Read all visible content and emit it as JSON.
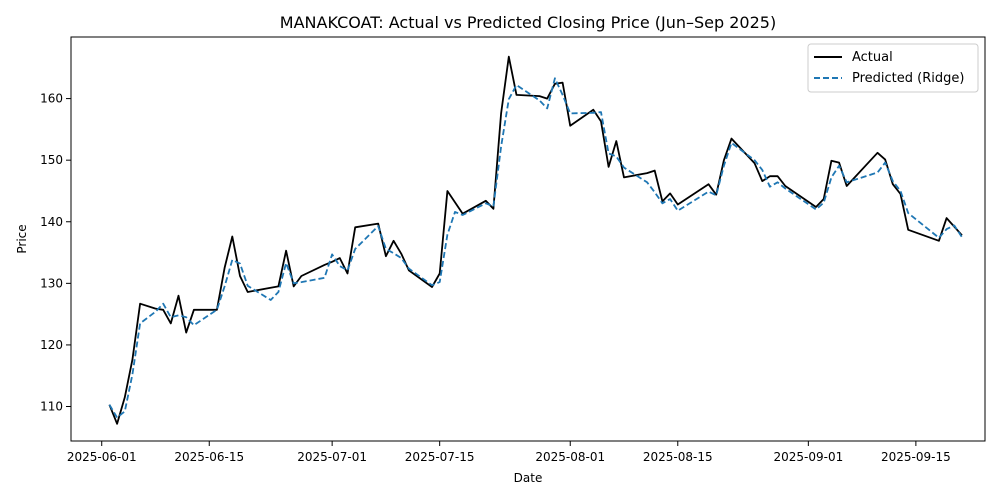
{
  "chart_data": {
    "type": "line",
    "title": "MANAKCOAT: Actual vs Predicted Closing Price (Jun–Sep 2025)",
    "xlabel": "Date",
    "ylabel": "Price",
    "xlim": [
      "2025-05-28",
      "2025-09-24"
    ],
    "ylim": [
      104.4,
      170.0
    ],
    "x_ticks": [
      "2025-06-01",
      "2025-06-15",
      "2025-07-01",
      "2025-07-15",
      "2025-08-01",
      "2025-08-15",
      "2025-09-01",
      "2025-09-15"
    ],
    "y_ticks": [
      110,
      120,
      130,
      140,
      150,
      160
    ],
    "grid": false,
    "legend_position": "top-right",
    "colors": {
      "actual": "#000000",
      "predicted": "#1f77b4"
    },
    "series": [
      {
        "name": "Actual",
        "style": "solid",
        "points": [
          [
            "2025-06-02",
            110.3
          ],
          [
            "2025-06-03",
            107.2
          ],
          [
            "2025-06-04",
            111.5
          ],
          [
            "2025-06-05",
            117.6
          ],
          [
            "2025-06-06",
            126.7
          ],
          [
            "2025-06-08",
            125.9
          ],
          [
            "2025-06-09",
            125.7
          ],
          [
            "2025-06-10",
            123.5
          ],
          [
            "2025-06-11",
            128.0
          ],
          [
            "2025-06-12",
            122.0
          ],
          [
            "2025-06-13",
            125.7
          ],
          [
            "2025-06-16",
            125.7
          ],
          [
            "2025-06-17",
            132.5
          ],
          [
            "2025-06-18",
            137.6
          ],
          [
            "2025-06-19",
            131.2
          ],
          [
            "2025-06-20",
            128.6
          ],
          [
            "2025-06-23",
            129.3
          ],
          [
            "2025-06-24",
            129.5
          ],
          [
            "2025-06-25",
            135.3
          ],
          [
            "2025-06-26",
            129.5
          ],
          [
            "2025-06-27",
            131.2
          ],
          [
            "2025-06-30",
            133.0
          ],
          [
            "2025-07-01",
            133.5
          ],
          [
            "2025-07-02",
            134.1
          ],
          [
            "2025-07-03",
            131.6
          ],
          [
            "2025-07-04",
            139.1
          ],
          [
            "2025-07-07",
            139.7
          ],
          [
            "2025-07-08",
            134.4
          ],
          [
            "2025-07-09",
            136.9
          ],
          [
            "2025-07-10",
            134.8
          ],
          [
            "2025-07-11",
            132.1
          ],
          [
            "2025-07-14",
            129.4
          ],
          [
            "2025-07-15",
            131.6
          ],
          [
            "2025-07-16",
            145.0
          ],
          [
            "2025-07-18",
            141.3
          ],
          [
            "2025-07-21",
            143.4
          ],
          [
            "2025-07-22",
            142.1
          ],
          [
            "2025-07-23",
            157.6
          ],
          [
            "2025-07-24",
            166.8
          ],
          [
            "2025-07-25",
            160.6
          ],
          [
            "2025-07-28",
            160.4
          ],
          [
            "2025-07-29",
            160.0
          ],
          [
            "2025-07-30",
            162.4
          ],
          [
            "2025-07-31",
            162.6
          ],
          [
            "2025-08-01",
            155.6
          ],
          [
            "2025-08-04",
            158.2
          ],
          [
            "2025-08-05",
            156.3
          ],
          [
            "2025-08-06",
            148.9
          ],
          [
            "2025-08-07",
            153.1
          ],
          [
            "2025-08-08",
            147.2
          ],
          [
            "2025-08-11",
            147.9
          ],
          [
            "2025-08-12",
            148.3
          ],
          [
            "2025-08-13",
            143.3
          ],
          [
            "2025-08-14",
            144.6
          ],
          [
            "2025-08-15",
            142.8
          ],
          [
            "2025-08-19",
            146.1
          ],
          [
            "2025-08-20",
            144.4
          ],
          [
            "2025-08-21",
            150.0
          ],
          [
            "2025-08-22",
            153.5
          ],
          [
            "2025-08-25",
            149.5
          ],
          [
            "2025-08-26",
            146.6
          ],
          [
            "2025-08-27",
            147.4
          ],
          [
            "2025-08-28",
            147.4
          ],
          [
            "2025-08-29",
            145.8
          ],
          [
            "2025-09-02",
            142.4
          ],
          [
            "2025-09-03",
            143.7
          ],
          [
            "2025-09-04",
            149.9
          ],
          [
            "2025-09-05",
            149.6
          ],
          [
            "2025-09-06",
            145.8
          ],
          [
            "2025-09-10",
            151.2
          ],
          [
            "2025-09-11",
            150.1
          ],
          [
            "2025-09-12",
            146.1
          ],
          [
            "2025-09-13",
            144.5
          ],
          [
            "2025-09-14",
            138.7
          ],
          [
            "2025-09-18",
            136.9
          ],
          [
            "2025-09-19",
            140.6
          ],
          [
            "2025-09-21",
            137.8
          ]
        ]
      },
      {
        "name": "Predicted (Ridge)",
        "style": "dashed",
        "points": [
          [
            "2025-06-02",
            110.3
          ],
          [
            "2025-06-03",
            108.2
          ],
          [
            "2025-06-04",
            109.2
          ],
          [
            "2025-06-05",
            115.2
          ],
          [
            "2025-06-06",
            123.5
          ],
          [
            "2025-06-08",
            125.4
          ],
          [
            "2025-06-09",
            126.7
          ],
          [
            "2025-06-10",
            124.5
          ],
          [
            "2025-06-11",
            124.8
          ],
          [
            "2025-06-12",
            124.5
          ],
          [
            "2025-06-13",
            123.2
          ],
          [
            "2025-06-16",
            125.7
          ],
          [
            "2025-06-17",
            129.5
          ],
          [
            "2025-06-18",
            133.8
          ],
          [
            "2025-06-19",
            133.2
          ],
          [
            "2025-06-20",
            129.6
          ],
          [
            "2025-06-23",
            127.3
          ],
          [
            "2025-06-24",
            128.6
          ],
          [
            "2025-06-25",
            133.3
          ],
          [
            "2025-06-26",
            130.0
          ],
          [
            "2025-06-27",
            130.2
          ],
          [
            "2025-06-30",
            130.9
          ],
          [
            "2025-07-01",
            134.7
          ],
          [
            "2025-07-02",
            132.8
          ],
          [
            "2025-07-03",
            132.1
          ],
          [
            "2025-07-04",
            135.6
          ],
          [
            "2025-07-07",
            139.3
          ],
          [
            "2025-07-08",
            135.6
          ],
          [
            "2025-07-09",
            134.9
          ],
          [
            "2025-07-10",
            134.1
          ],
          [
            "2025-07-11",
            132.4
          ],
          [
            "2025-07-14",
            129.7
          ],
          [
            "2025-07-15",
            130.2
          ],
          [
            "2025-07-16",
            137.9
          ],
          [
            "2025-07-17",
            141.6
          ],
          [
            "2025-07-18",
            141.1
          ],
          [
            "2025-07-21",
            143.0
          ],
          [
            "2025-07-22",
            142.5
          ],
          [
            "2025-07-23",
            152.2
          ],
          [
            "2025-07-24",
            159.9
          ],
          [
            "2025-07-25",
            162.2
          ],
          [
            "2025-07-28",
            159.7
          ],
          [
            "2025-07-29",
            158.4
          ],
          [
            "2025-07-30",
            163.3
          ],
          [
            "2025-07-31",
            160.6
          ],
          [
            "2025-08-01",
            157.6
          ],
          [
            "2025-08-04",
            157.7
          ],
          [
            "2025-08-05",
            157.8
          ],
          [
            "2025-08-06",
            151.1
          ],
          [
            "2025-08-07",
            150.6
          ],
          [
            "2025-08-08",
            148.8
          ],
          [
            "2025-08-11",
            146.4
          ],
          [
            "2025-08-12",
            144.8
          ],
          [
            "2025-08-13",
            143.0
          ],
          [
            "2025-08-14",
            143.7
          ],
          [
            "2025-08-15",
            141.8
          ],
          [
            "2025-08-19",
            144.9
          ],
          [
            "2025-08-20",
            144.3
          ],
          [
            "2025-08-21",
            149.1
          ],
          [
            "2025-08-22",
            152.8
          ],
          [
            "2025-08-25",
            150.0
          ],
          [
            "2025-08-26",
            148.4
          ],
          [
            "2025-08-27",
            145.7
          ],
          [
            "2025-08-28",
            146.4
          ],
          [
            "2025-08-29",
            145.4
          ],
          [
            "2025-09-02",
            142.0
          ],
          [
            "2025-09-03",
            143.1
          ],
          [
            "2025-09-04",
            147.2
          ],
          [
            "2025-09-05",
            149.1
          ],
          [
            "2025-09-06",
            146.4
          ],
          [
            "2025-09-10",
            148.0
          ],
          [
            "2025-09-11",
            149.6
          ],
          [
            "2025-09-12",
            146.6
          ],
          [
            "2025-09-13",
            145.0
          ],
          [
            "2025-09-14",
            141.4
          ],
          [
            "2025-09-18",
            137.4
          ],
          [
            "2025-09-19",
            138.8
          ],
          [
            "2025-09-20",
            139.4
          ],
          [
            "2025-09-21",
            137.5
          ]
        ]
      }
    ]
  }
}
